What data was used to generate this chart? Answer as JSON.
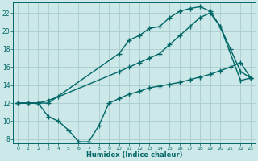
{
  "xlabel": "Humidex (Indice chaleur)",
  "bg_color": "#cce8e8",
  "grid_color": "#aacccc",
  "line_color": "#006666",
  "xlim": [
    -0.5,
    23.5
  ],
  "ylim": [
    7.5,
    23.2
  ],
  "xticks": [
    0,
    1,
    2,
    3,
    4,
    5,
    6,
    7,
    8,
    9,
    10,
    11,
    12,
    13,
    14,
    15,
    16,
    17,
    18,
    19,
    20,
    21,
    22,
    23
  ],
  "yticks": [
    8,
    10,
    12,
    14,
    16,
    18,
    20,
    22
  ],
  "line1_x": [
    0,
    1,
    2,
    3,
    10,
    11,
    12,
    13,
    14,
    15,
    16,
    17,
    18,
    19,
    20,
    21,
    22,
    23
  ],
  "line1_y": [
    12,
    12,
    12,
    12,
    17.5,
    19.0,
    19.5,
    20.3,
    20.5,
    21.5,
    22.2,
    22.5,
    22.7,
    22.2,
    20.5,
    18.0,
    15.5,
    14.8
  ],
  "line2_x": [
    0,
    1,
    2,
    3,
    4,
    10,
    11,
    12,
    13,
    14,
    15,
    16,
    17,
    18,
    19,
    20,
    22,
    23
  ],
  "line2_y": [
    12,
    12,
    12,
    12.3,
    12.7,
    15.5,
    16.0,
    16.5,
    17.0,
    17.5,
    18.5,
    19.5,
    20.5,
    21.5,
    22.0,
    20.5,
    14.5,
    14.8
  ],
  "line3_x": [
    0,
    1,
    2,
    3,
    4,
    5,
    6,
    7,
    8,
    9,
    10,
    11,
    12,
    13,
    14,
    15,
    16,
    17,
    18,
    19,
    20,
    21,
    22,
    23
  ],
  "line3_y": [
    12,
    12,
    12,
    10.5,
    10.0,
    9.0,
    7.7,
    7.7,
    9.5,
    12.0,
    12.5,
    13.0,
    13.3,
    13.7,
    13.9,
    14.1,
    14.3,
    14.6,
    14.9,
    15.2,
    15.6,
    16.0,
    16.5,
    14.8
  ]
}
